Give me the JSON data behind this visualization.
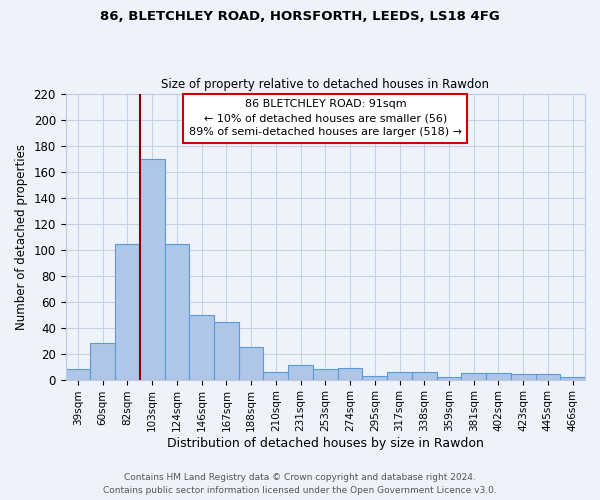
{
  "title_line1": "86, BLETCHLEY ROAD, HORSFORTH, LEEDS, LS18 4FG",
  "title_line2": "Size of property relative to detached houses in Rawdon",
  "xlabel": "Distribution of detached houses by size in Rawdon",
  "ylabel": "Number of detached properties",
  "bar_color": "#aec6e8",
  "bar_edge_color": "#5b9bd5",
  "categories": [
    "39sqm",
    "60sqm",
    "82sqm",
    "103sqm",
    "124sqm",
    "146sqm",
    "167sqm",
    "188sqm",
    "210sqm",
    "231sqm",
    "253sqm",
    "274sqm",
    "295sqm",
    "317sqm",
    "338sqm",
    "359sqm",
    "381sqm",
    "402sqm",
    "423sqm",
    "445sqm",
    "466sqm"
  ],
  "values": [
    8,
    28,
    104,
    170,
    104,
    50,
    44,
    25,
    6,
    11,
    8,
    9,
    3,
    6,
    6,
    2,
    5,
    5,
    4,
    4,
    2
  ],
  "ylim": [
    0,
    220
  ],
  "yticks": [
    0,
    20,
    40,
    60,
    80,
    100,
    120,
    140,
    160,
    180,
    200,
    220
  ],
  "subject_line_color": "#8b0000",
  "annotation_box_text": "86 BLETCHLEY ROAD: 91sqm\n← 10% of detached houses are smaller (56)\n89% of semi-detached houses are larger (518) →",
  "annotation_box_edge_color": "#cc0000",
  "annotation_box_fill": "#ffffff",
  "grid_color": "#c8d0e8",
  "background_color": "#eef2fa",
  "footnote_line1": "Contains HM Land Registry data © Crown copyright and database right 2024.",
  "footnote_line2": "Contains public sector information licensed under the Open Government Licence v3.0.",
  "bar_width": 1.0,
  "subject_bar_index": 3
}
